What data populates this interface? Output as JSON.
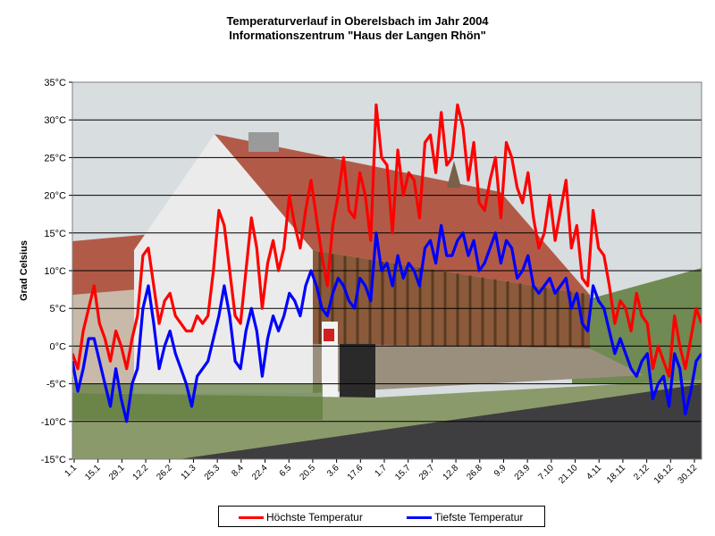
{
  "colors": {
    "high": "#ff0000",
    "low": "#0000ff",
    "sky": "#d8dde0",
    "building_roof": "#b25a48",
    "building_wall": "#ebebeb",
    "facade_wood": "#8a5a3a",
    "road": "#3e3e40",
    "vegetation": "#5e7a3a"
  },
  "chart_data": {
    "type": "line",
    "title": "Temperaturverlauf in Oberelsbach im Jahr 2004",
    "subtitle": "Informationszentrum \"Haus der Langen Rhön\"",
    "xlabel": "",
    "ylabel": "Grad Celsius",
    "ylim": [
      -15,
      35
    ],
    "ytick_step": 5,
    "ytick_labels": [
      "35°C",
      "30°C",
      "25°C",
      "20°C",
      "15°C",
      "10°C",
      "5°C",
      "0°C",
      "-5°C",
      "-10°C",
      "-15°C"
    ],
    "grid": true,
    "legend_position": "bottom",
    "background": "photo of the Haus der Langen Rhön building",
    "x_tick_labels": [
      "1.1",
      "15.1",
      "29.1",
      "12.2",
      "26.2",
      "11.3",
      "25.3",
      "8.4",
      "22.4",
      "6.5",
      "20.5",
      "3.6",
      "17.6",
      "1.7",
      "15.7",
      "29.7",
      "12.8",
      "26.8",
      "9.9",
      "23.9",
      "7.10",
      "21.10",
      "4.11",
      "18.11",
      "2.12",
      "16.12",
      "30.12"
    ],
    "series": [
      {
        "name": "Höchste Temperatur",
        "color": "#ff0000",
        "day_values": [
          -1,
          -3,
          2,
          5,
          8,
          3,
          1,
          -2,
          2,
          0,
          -3,
          1,
          4,
          12,
          13,
          8,
          3,
          6,
          7,
          4,
          3,
          2,
          2,
          4,
          3,
          4,
          10,
          18,
          16,
          10,
          4,
          3,
          10,
          17,
          13,
          5,
          11,
          14,
          10,
          13,
          20,
          16,
          13,
          18,
          22,
          17,
          12,
          8,
          16,
          20,
          25,
          18,
          17,
          23,
          20,
          14,
          32,
          25,
          24,
          15,
          26,
          20,
          23,
          22,
          17,
          27,
          28,
          23,
          31,
          24,
          25,
          32,
          29,
          22,
          27,
          19,
          18,
          22,
          25,
          17,
          27,
          25,
          21,
          19,
          23,
          17,
          13,
          15,
          20,
          14,
          18,
          22,
          13,
          16,
          9,
          8,
          18,
          13,
          12,
          8,
          3,
          6,
          5,
          2,
          7,
          4,
          3,
          -3,
          0,
          -2,
          -4,
          4,
          0,
          -3,
          1,
          5,
          3
        ]
      },
      {
        "name": "Tiefste Temperatur",
        "color": "#0000ff",
        "day_values": [
          -2,
          -6,
          -3,
          1,
          1,
          -2,
          -5,
          -8,
          -3,
          -7,
          -10,
          -5,
          -3,
          5,
          8,
          3,
          -3,
          0,
          2,
          -1,
          -3,
          -5,
          -8,
          -4,
          -3,
          -2,
          1,
          4,
          8,
          4,
          -2,
          -3,
          2,
          5,
          2,
          -4,
          1,
          4,
          2,
          4,
          7,
          6,
          4,
          8,
          10,
          8,
          5,
          4,
          7,
          9,
          8,
          6,
          5,
          9,
          8,
          6,
          15,
          10,
          11,
          8,
          12,
          9,
          11,
          10,
          8,
          13,
          14,
          11,
          16,
          12,
          12,
          14,
          15,
          12,
          14,
          10,
          11,
          13,
          15,
          11,
          14,
          13,
          9,
          10,
          12,
          8,
          7,
          8,
          9,
          7,
          8,
          9,
          5,
          7,
          3,
          2,
          8,
          6,
          5,
          2,
          -1,
          1,
          -1,
          -3,
          -4,
          -2,
          -1,
          -7,
          -5,
          -4,
          -8,
          -1,
          -3,
          -9,
          -6,
          -2,
          -1
        ]
      }
    ]
  }
}
